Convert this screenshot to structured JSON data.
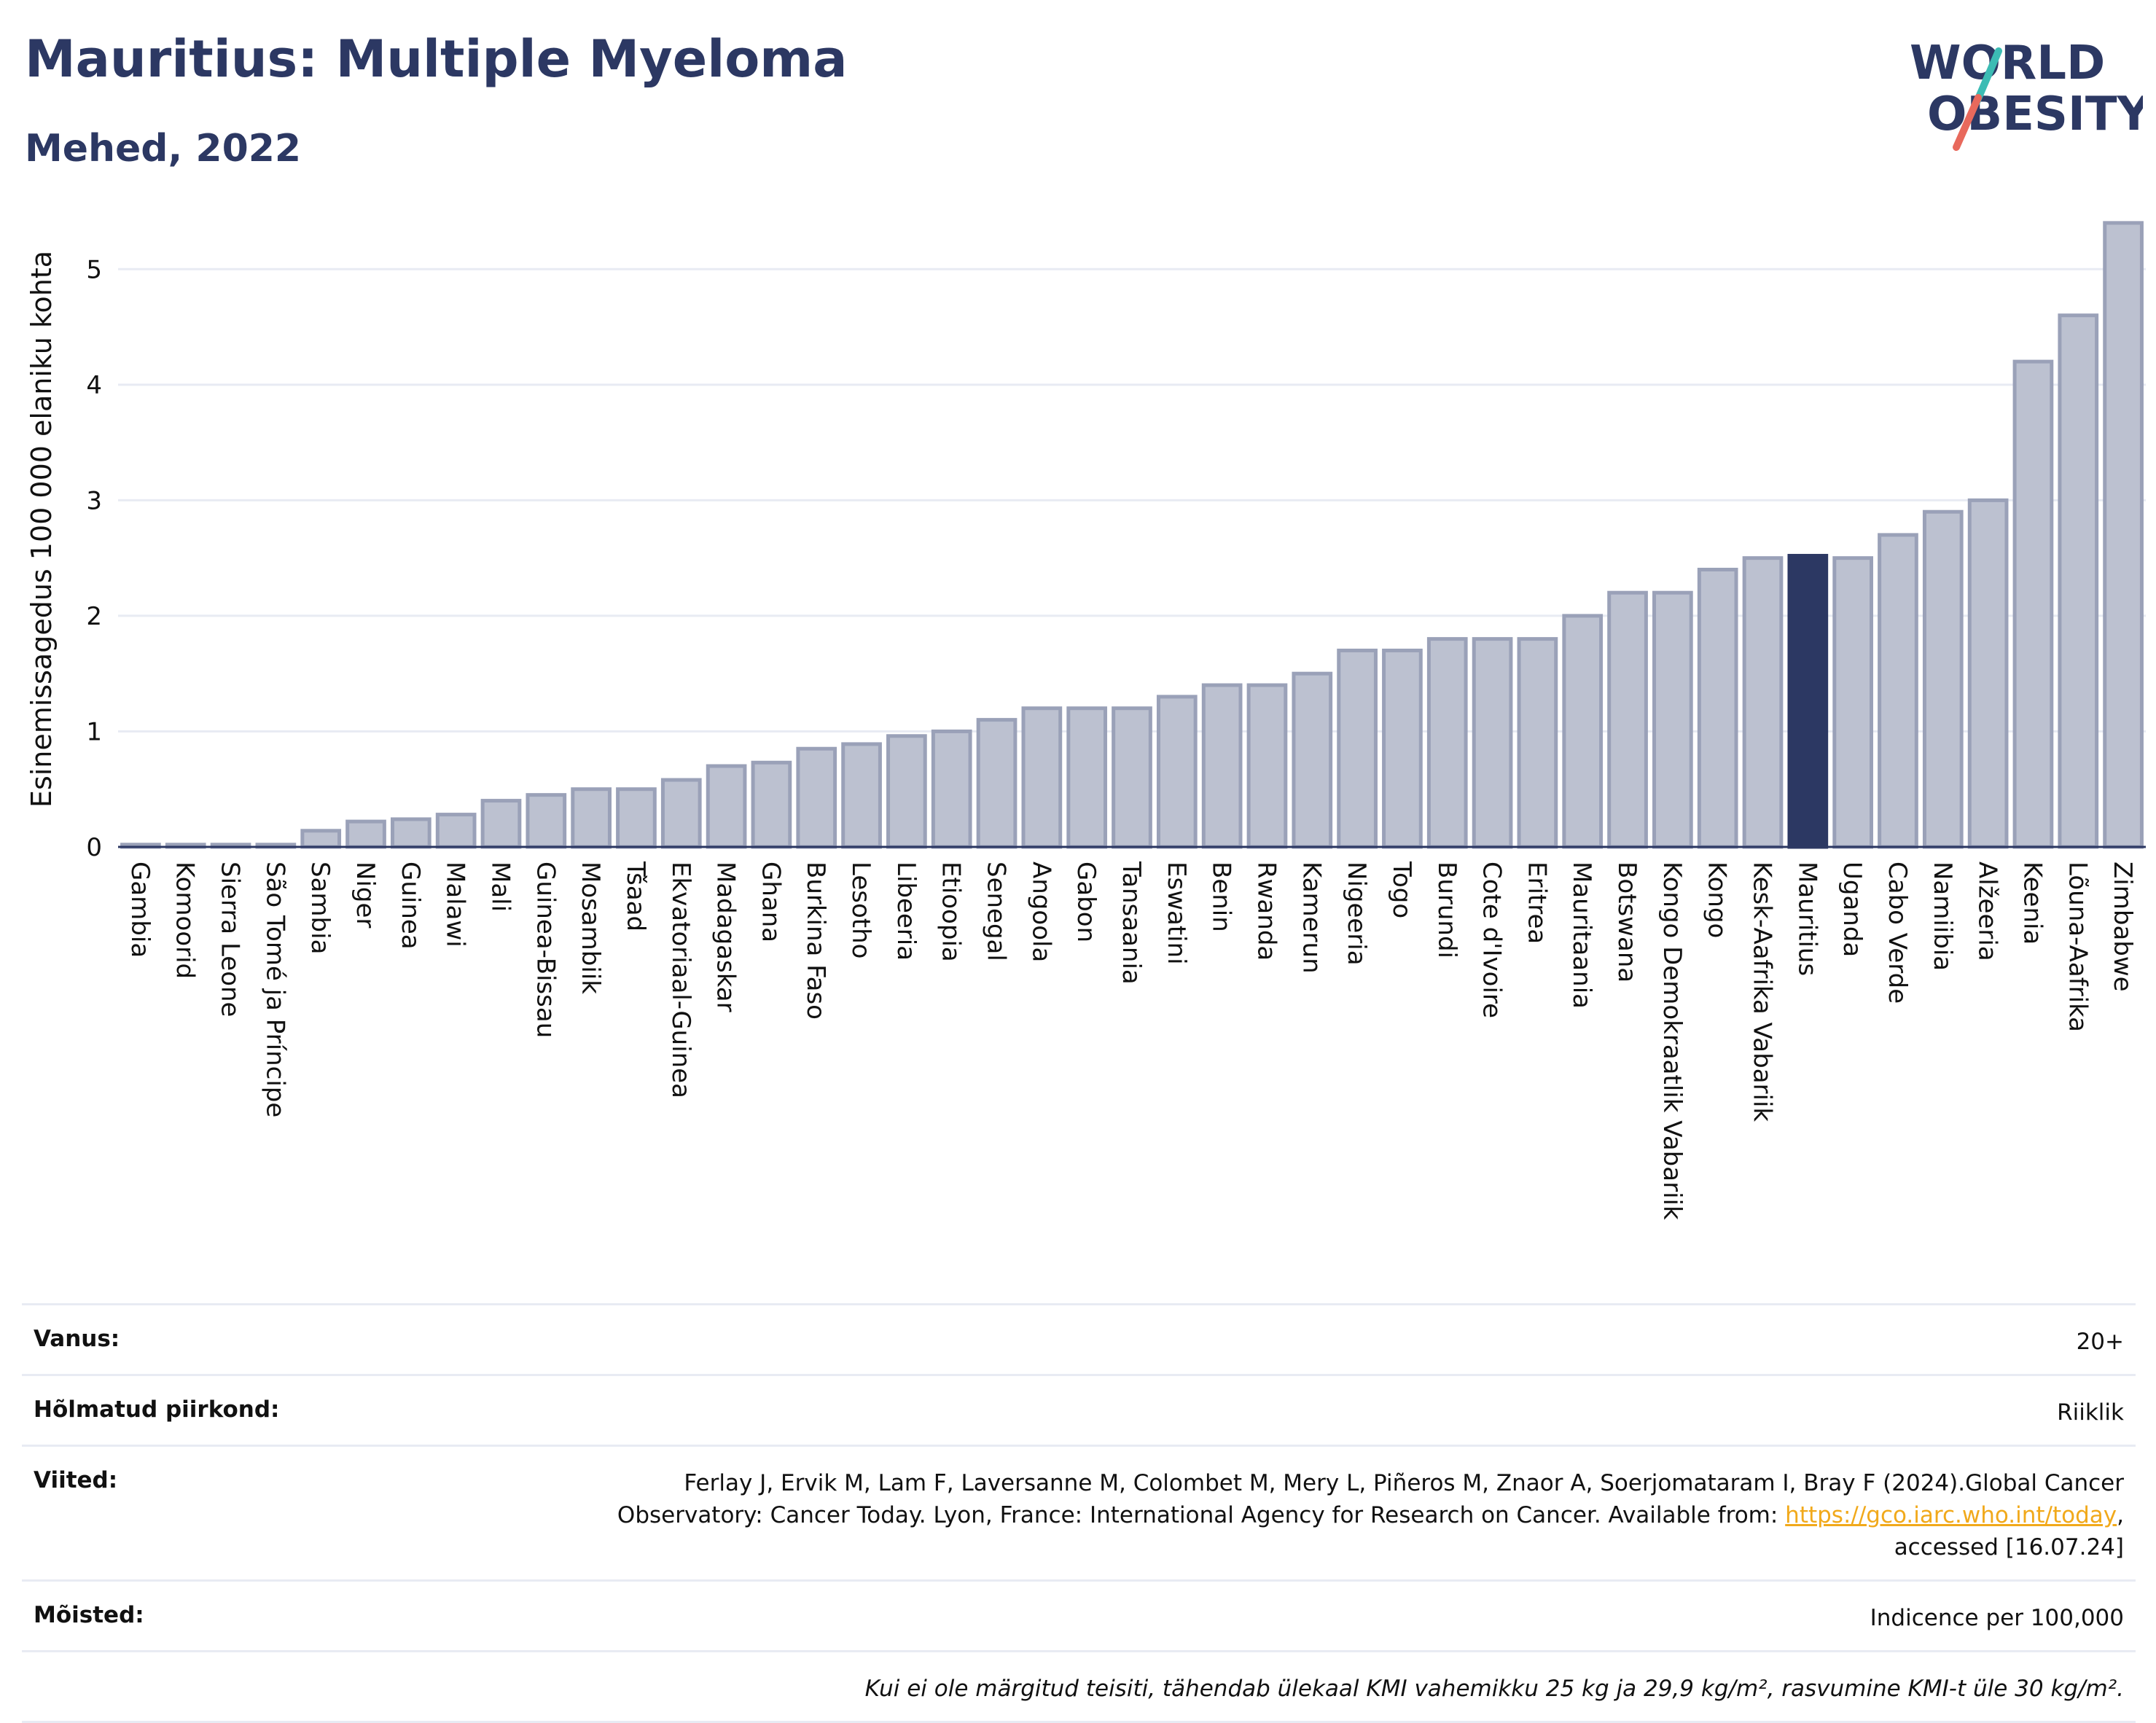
{
  "header": {
    "title": "Mauritius: Multiple Myeloma",
    "subtitle": "Mehed, 2022"
  },
  "logo": {
    "line1": "WORLD",
    "line2": "OBESITY",
    "colors": {
      "text": "#2c3863",
      "slash_top": "#3cbcb4",
      "slash_bottom": "#e8695c"
    }
  },
  "colors": {
    "bar_fill": "#bcc1d0",
    "bar_stroke": "#9aa1b8",
    "highlight_fill": "#2c3863",
    "grid": "#e8ebf3",
    "axis": "#2c3863"
  },
  "chart_data": {
    "type": "bar",
    "ylabel": "Esinemissagedus 100 000 elaniku kohta",
    "ylim": [
      0,
      5.5
    ],
    "yticks": [
      0,
      1,
      2,
      3,
      4,
      5
    ],
    "highlight": "Mauritius",
    "grid": true,
    "categories": [
      "Gambia",
      "Komoorid",
      "Sierra Leone",
      "São Tomé ja Príncipe",
      "Sambia",
      "Niger",
      "Guinea",
      "Malawi",
      "Mali",
      "Guinea-Bissau",
      "Mosambiik",
      "Tšaad",
      "Ekvatoriaal-Guinea",
      "Madagaskar",
      "Ghana",
      "Burkina Faso",
      "Lesotho",
      "Libeeria",
      "Etioopia",
      "Senegal",
      "Angoola",
      "Gabon",
      "Tansaania",
      "Eswatini",
      "Benin",
      "Rwanda",
      "Kamerun",
      "Nigeeria",
      "Togo",
      "Burundi",
      "Cote d'Ivoire",
      "Eritrea",
      "Mauritaania",
      "Botswana",
      "Kongo Demokraatlik Vabariik",
      "Kongo",
      "Kesk-Aafrika Vabariik",
      "Mauritius",
      "Uganda",
      "Cabo Verde",
      "Namiibia",
      "Alžeeria",
      "Keenia",
      "Lõuna-Aafrika",
      "Zimbabwe"
    ],
    "values": [
      0.02,
      0.02,
      0.02,
      0.02,
      0.14,
      0.22,
      0.24,
      0.28,
      0.4,
      0.45,
      0.5,
      0.5,
      0.58,
      0.7,
      0.73,
      0.85,
      0.89,
      0.96,
      1.0,
      1.1,
      1.2,
      1.2,
      1.2,
      1.3,
      1.4,
      1.4,
      1.5,
      1.7,
      1.7,
      1.8,
      1.8,
      1.8,
      2.0,
      2.2,
      2.2,
      2.4,
      2.5,
      2.52,
      2.5,
      2.7,
      2.9,
      3.0,
      4.2,
      4.6,
      5.4
    ]
  },
  "info": {
    "rows": [
      {
        "key": "Vanus:",
        "value": "20+"
      },
      {
        "key": "Hõlmatud piirkond:",
        "value": "Riiklik"
      },
      {
        "key": "Viited:",
        "value_line1": "Ferlay J, Ervik M, Lam F, Laversanne M, Colombet M, Mery L, Piñeros M, Znaor A, Soerjomataram I, Bray F (2024).Global Cancer",
        "value_line2_pre": "Observatory: Cancer Today. Lyon, France: International Agency for Research on Cancer. Available from: ",
        "link": "https://gco.iarc.who.int/today",
        "value_line2_post": ",",
        "value_line3": "accessed [16.07.24]"
      },
      {
        "key": "Mõisted:",
        "value": "Indicence per 100,000"
      }
    ],
    "note": "Kui ei ole märgitud teisiti, tähendab ülekaal KMI vahemikku 25 kg ja 29,9 kg/m², rasvumine KMI-t üle 30 kg/m²."
  }
}
